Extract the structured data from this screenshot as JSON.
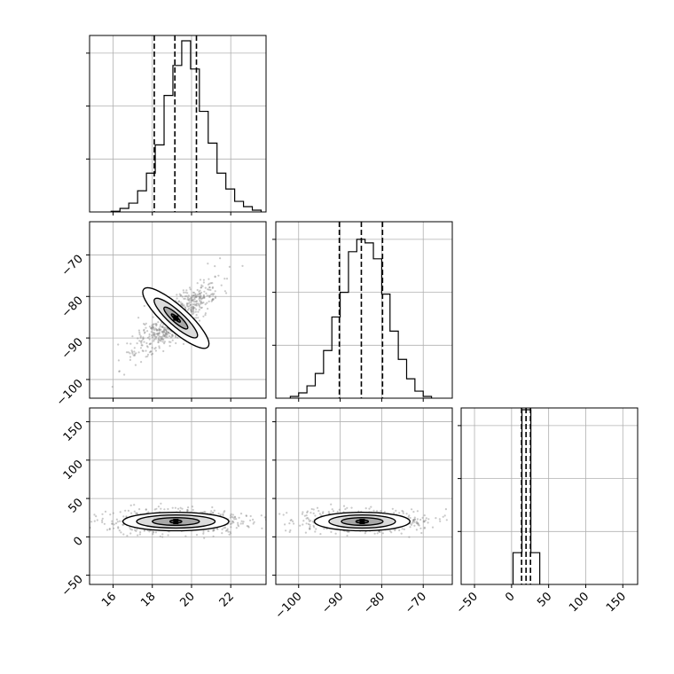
{
  "colors": {
    "ink": "#000000",
    "grid": "#b0b0b0",
    "background": "#ffffff"
  },
  "chart_data": [
    {
      "type": "histogram",
      "panel": "p0_0",
      "xlim": [
        14.8,
        23.8
      ],
      "bins": [
        {
          "x0": 15.9,
          "x1": 16.35,
          "count": 0.004
        },
        {
          "x0": 16.35,
          "x1": 16.8,
          "count": 0.02
        },
        {
          "x0": 16.8,
          "x1": 17.25,
          "count": 0.05
        },
        {
          "x0": 17.25,
          "x1": 17.7,
          "count": 0.12
        },
        {
          "x0": 17.7,
          "x1": 18.15,
          "count": 0.22
        },
        {
          "x0": 18.15,
          "x1": 18.6,
          "count": 0.38
        },
        {
          "x0": 18.6,
          "x1": 19.05,
          "count": 0.66
        },
        {
          "x0": 19.05,
          "x1": 19.5,
          "count": 0.83
        },
        {
          "x0": 19.5,
          "x1": 19.95,
          "count": 0.97
        },
        {
          "x0": 19.95,
          "x1": 20.4,
          "count": 0.81
        },
        {
          "x0": 20.4,
          "x1": 20.85,
          "count": 0.57
        },
        {
          "x0": 20.85,
          "x1": 21.3,
          "count": 0.39
        },
        {
          "x0": 21.3,
          "x1": 21.75,
          "count": 0.22
        },
        {
          "x0": 21.75,
          "x1": 22.2,
          "count": 0.13
        },
        {
          "x0": 22.2,
          "x1": 22.65,
          "count": 0.06
        },
        {
          "x0": 22.65,
          "x1": 23.1,
          "count": 0.03
        },
        {
          "x0": 23.1,
          "x1": 23.55,
          "count": 0.01
        }
      ],
      "quantiles": [
        18.1,
        19.15,
        20.25
      ]
    },
    {
      "type": "histogram",
      "panel": "p1_1",
      "xlim": [
        -105.5,
        -63
      ],
      "bins": [
        {
          "x0": -102,
          "x1": -100,
          "count": 0.01
        },
        {
          "x0": -100,
          "x1": -98,
          "count": 0.03
        },
        {
          "x0": -98,
          "x1": -96,
          "count": 0.07
        },
        {
          "x0": -96,
          "x1": -94,
          "count": 0.14
        },
        {
          "x0": -94,
          "x1": -92,
          "count": 0.27
        },
        {
          "x0": -92,
          "x1": -90,
          "count": 0.46
        },
        {
          "x0": -90,
          "x1": -88,
          "count": 0.6
        },
        {
          "x0": -88,
          "x1": -86,
          "count": 0.83
        },
        {
          "x0": -86,
          "x1": -84,
          "count": 0.9
        },
        {
          "x0": -84,
          "x1": -82,
          "count": 0.88
        },
        {
          "x0": -82,
          "x1": -80,
          "count": 0.79
        },
        {
          "x0": -80,
          "x1": -78,
          "count": 0.59
        },
        {
          "x0": -78,
          "x1": -76,
          "count": 0.38
        },
        {
          "x0": -76,
          "x1": -74,
          "count": 0.22
        },
        {
          "x0": -74,
          "x1": -72,
          "count": 0.11
        },
        {
          "x0": -72,
          "x1": -70,
          "count": 0.04
        },
        {
          "x0": -70,
          "x1": -68,
          "count": 0.01
        }
      ],
      "quantiles": [
        -90.2,
        -84.9,
        -79.8
      ]
    },
    {
      "type": "histogram",
      "panel": "p2_2",
      "xlim": [
        -68,
        170
      ],
      "bins": [
        {
          "x0": 2,
          "x1": 14,
          "count": 0.18
        },
        {
          "x0": 14,
          "x1": 26,
          "count": 0.99
        },
        {
          "x0": 26,
          "x1": 38,
          "count": 0.18
        }
      ],
      "quantiles": [
        13.5,
        19.5,
        25.5
      ]
    },
    {
      "type": "contour_scatter",
      "panel": "p1_0",
      "x_param_range": [
        14.8,
        23.8
      ],
      "y_param_range": [
        -104.5,
        -62
      ],
      "center": [
        19.2,
        -85.2
      ],
      "contour_levels": [
        {
          "rx": 2.2,
          "ry": 2.9,
          "rotation_deg": 42
        },
        {
          "rx": 1.45,
          "ry": 1.75,
          "rotation_deg": 42
        },
        {
          "rx": 0.8,
          "ry": 0.95,
          "rotation_deg": 42
        },
        {
          "rx": 0.3,
          "ry": 0.35,
          "rotation_deg": 42
        }
      ]
    },
    {
      "type": "contour_scatter",
      "panel": "p2_0",
      "x_param_range": [
        14.8,
        23.8
      ],
      "y_param_range": [
        -62,
        168
      ],
      "center": [
        19.2,
        20
      ],
      "contour_levels": [
        {
          "rx": 2.7,
          "ry": 12
        },
        {
          "rx": 2.0,
          "ry": 8.5
        },
        {
          "rx": 1.2,
          "ry": 5
        },
        {
          "rx": 0.3,
          "ry": 2
        }
      ]
    },
    {
      "type": "contour_scatter",
      "panel": "p2_1",
      "x_param_range": [
        -105.5,
        -63
      ],
      "y_param_range": [
        -62,
        168
      ],
      "center": [
        -84.7,
        20
      ],
      "contour_levels": [
        {
          "rx": 11.5,
          "ry": 12
        },
        {
          "rx": 8.0,
          "ry": 8.5
        },
        {
          "rx": 5.0,
          "ry": 5
        },
        {
          "rx": 1.5,
          "ry": 2
        }
      ]
    }
  ],
  "axes": {
    "x_param0": {
      "ticks": [
        16,
        18,
        20,
        22
      ],
      "labels": [
        "16",
        "18",
        "20",
        "22"
      ]
    },
    "x_param1": {
      "ticks": [
        -100,
        -90,
        -80,
        -70
      ],
      "labels": [
        "−100",
        "−90",
        "−80",
        "−70"
      ]
    },
    "x_param2": {
      "ticks": [
        -50,
        0,
        50,
        100,
        150
      ],
      "labels": [
        "−50",
        "0",
        "50",
        "100",
        "150"
      ]
    },
    "y_param1": {
      "ticks": [
        -100,
        -90,
        -80,
        -70
      ],
      "labels": [
        "−100",
        "−90",
        "−80",
        "−70"
      ]
    },
    "y_param2": {
      "ticks": [
        -50,
        0,
        50,
        100,
        150
      ],
      "labels": [
        "−50",
        "0",
        "50",
        "100",
        "150"
      ]
    },
    "hist_y_ticks": [
      0,
      0.3,
      0.6,
      0.9
    ]
  }
}
